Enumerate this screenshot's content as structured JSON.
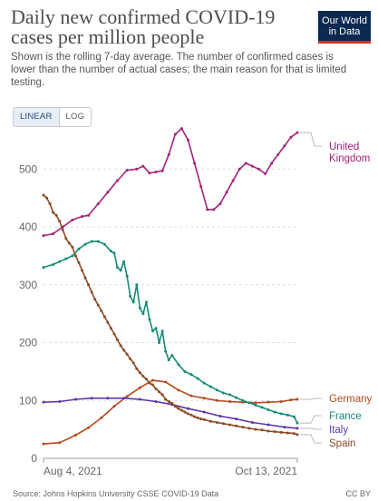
{
  "header": {
    "title": "Daily new confirmed COVID-19 cases per million people",
    "subtitle": "Shown is the rolling 7-day average. The number of confirmed cases is lower than the number of actual cases; the main reason for that is limited testing.",
    "logo_line1": "Our World",
    "logo_line2": "in Data"
  },
  "controls": {
    "linear_label": "LINEAR",
    "log_label": "LOG",
    "selected": "LINEAR"
  },
  "footer": {
    "source": "Source: Johns Hopkins University CSSE COVID-19 Data",
    "license": "CC BY"
  },
  "chart_data": {
    "type": "line",
    "title": "Daily new confirmed COVID-19 cases per million people",
    "x_start": "2021-08-04",
    "x_end": "2021-10-13",
    "x_tick_labels": [
      "Aug 4, 2021",
      "Oct 13, 2021"
    ],
    "ylim": [
      0,
      560
    ],
    "y_ticks": [
      0,
      100,
      200,
      300,
      400,
      500
    ],
    "grid": true,
    "legend": "right, end-of-line labels",
    "series": [
      {
        "name": "United Kingdom",
        "color": "#a2237b",
        "points": [
          [
            0,
            385
          ],
          [
            3,
            388
          ],
          [
            6,
            400
          ],
          [
            9,
            412
          ],
          [
            12,
            418
          ],
          [
            14,
            420
          ],
          [
            17,
            440
          ],
          [
            20,
            460
          ],
          [
            23,
            480
          ],
          [
            26,
            498
          ],
          [
            29,
            500
          ],
          [
            31,
            505
          ],
          [
            33,
            493
          ],
          [
            35,
            495
          ],
          [
            37,
            497
          ],
          [
            39,
            525
          ],
          [
            41,
            560
          ],
          [
            43,
            570
          ],
          [
            45,
            550
          ],
          [
            47,
            510
          ],
          [
            49,
            470
          ],
          [
            51,
            430
          ],
          [
            53,
            430
          ],
          [
            55,
            440
          ],
          [
            57,
            460
          ],
          [
            59,
            480
          ],
          [
            61,
            500
          ],
          [
            63,
            510
          ],
          [
            65,
            505
          ],
          [
            67,
            500
          ],
          [
            69,
            492
          ],
          [
            71,
            510
          ],
          [
            73,
            525
          ],
          [
            75,
            540
          ],
          [
            77,
            555
          ],
          [
            79,
            563
          ]
        ]
      },
      {
        "name": "Germany",
        "color": "#b5491c",
        "points": [
          [
            0,
            25
          ],
          [
            5,
            27
          ],
          [
            10,
            40
          ],
          [
            14,
            53
          ],
          [
            18,
            70
          ],
          [
            22,
            90
          ],
          [
            26,
            107
          ],
          [
            30,
            122
          ],
          [
            34,
            135
          ],
          [
            38,
            132
          ],
          [
            42,
            118
          ],
          [
            46,
            108
          ],
          [
            50,
            104
          ],
          [
            54,
            100
          ],
          [
            58,
            98
          ],
          [
            62,
            97
          ],
          [
            66,
            96
          ],
          [
            70,
            97
          ],
          [
            74,
            98
          ],
          [
            77,
            101
          ],
          [
            79,
            102
          ]
        ]
      },
      {
        "name": "France",
        "color": "#168b76",
        "points": [
          [
            0,
            330
          ],
          [
            3,
            335
          ],
          [
            5,
            340
          ],
          [
            7,
            345
          ],
          [
            9,
            350
          ],
          [
            11,
            362
          ],
          [
            13,
            370
          ],
          [
            15,
            375
          ],
          [
            17,
            375
          ],
          [
            19,
            370
          ],
          [
            21,
            358
          ],
          [
            22,
            355
          ],
          [
            23,
            330
          ],
          [
            24,
            325
          ],
          [
            25,
            340
          ],
          [
            26,
            315
          ],
          [
            27,
            280
          ],
          [
            28,
            270
          ],
          [
            29,
            300
          ],
          [
            30,
            260
          ],
          [
            31,
            250
          ],
          [
            32,
            270
          ],
          [
            33,
            240
          ],
          [
            34,
            220
          ],
          [
            35,
            225
          ],
          [
            36,
            200
          ],
          [
            37,
            220
          ],
          [
            38,
            185
          ],
          [
            39,
            170
          ],
          [
            40,
            178
          ],
          [
            42,
            162
          ],
          [
            44,
            150
          ],
          [
            46,
            145
          ],
          [
            48,
            138
          ],
          [
            50,
            130
          ],
          [
            52,
            124
          ],
          [
            54,
            118
          ],
          [
            56,
            113
          ],
          [
            58,
            110
          ],
          [
            60,
            105
          ],
          [
            62,
            100
          ],
          [
            64,
            96
          ],
          [
            66,
            92
          ],
          [
            68,
            88
          ],
          [
            70,
            84
          ],
          [
            72,
            80
          ],
          [
            74,
            77
          ],
          [
            76,
            75
          ],
          [
            78,
            72
          ],
          [
            79,
            61
          ]
        ]
      },
      {
        "name": "Italy",
        "color": "#5a37a5",
        "points": [
          [
            0,
            97
          ],
          [
            5,
            98
          ],
          [
            10,
            102
          ],
          [
            15,
            104
          ],
          [
            20,
            104
          ],
          [
            25,
            104
          ],
          [
            30,
            102
          ],
          [
            35,
            98
          ],
          [
            40,
            93
          ],
          [
            45,
            86
          ],
          [
            50,
            80
          ],
          [
            55,
            73
          ],
          [
            60,
            68
          ],
          [
            65,
            62
          ],
          [
            70,
            58
          ],
          [
            75,
            54
          ],
          [
            79,
            52
          ]
        ]
      },
      {
        "name": "Spain",
        "color": "#8b4a25",
        "points": [
          [
            0,
            455
          ],
          [
            1,
            450
          ],
          [
            2,
            440
          ],
          [
            3,
            425
          ],
          [
            4,
            420
          ],
          [
            5,
            410
          ],
          [
            6,
            395
          ],
          [
            7,
            380
          ],
          [
            8,
            372
          ],
          [
            9,
            365
          ],
          [
            10,
            350
          ],
          [
            11,
            338
          ],
          [
            12,
            325
          ],
          [
            13,
            312
          ],
          [
            14,
            300
          ],
          [
            15,
            287
          ],
          [
            16,
            275
          ],
          [
            17,
            265
          ],
          [
            18,
            255
          ],
          [
            19,
            245
          ],
          [
            20,
            235
          ],
          [
            21,
            225
          ],
          [
            22,
            215
          ],
          [
            23,
            205
          ],
          [
            24,
            195
          ],
          [
            25,
            187
          ],
          [
            26,
            180
          ],
          [
            27,
            172
          ],
          [
            28,
            165
          ],
          [
            29,
            155
          ],
          [
            30,
            148
          ],
          [
            31,
            142
          ],
          [
            32,
            137
          ],
          [
            33,
            130
          ],
          [
            34,
            127
          ],
          [
            35,
            120
          ],
          [
            36,
            115
          ],
          [
            37,
            110
          ],
          [
            38,
            102
          ],
          [
            39,
            98
          ],
          [
            40,
            95
          ],
          [
            41,
            90
          ],
          [
            42,
            86
          ],
          [
            43,
            83
          ],
          [
            44,
            80
          ],
          [
            45,
            77
          ],
          [
            46,
            75
          ],
          [
            47,
            72
          ],
          [
            48,
            70
          ],
          [
            49,
            68
          ],
          [
            50,
            67
          ],
          [
            52,
            64
          ],
          [
            54,
            62
          ],
          [
            56,
            60
          ],
          [
            58,
            58
          ],
          [
            60,
            56
          ],
          [
            62,
            54
          ],
          [
            64,
            52
          ],
          [
            66,
            50
          ],
          [
            68,
            49
          ],
          [
            70,
            47
          ],
          [
            72,
            46
          ],
          [
            74,
            45
          ],
          [
            76,
            44
          ],
          [
            78,
            43
          ],
          [
            79,
            41
          ]
        ]
      }
    ],
    "end_labels": [
      {
        "series": "United Kingdom",
        "text": [
          "United",
          "Kingdom"
        ]
      },
      {
        "series": "Germany",
        "text": [
          "Germany"
        ]
      },
      {
        "series": "France",
        "text": [
          "France"
        ]
      },
      {
        "series": "Italy",
        "text": [
          "Italy"
        ]
      },
      {
        "series": "Spain",
        "text": [
          "Spain"
        ]
      }
    ]
  }
}
